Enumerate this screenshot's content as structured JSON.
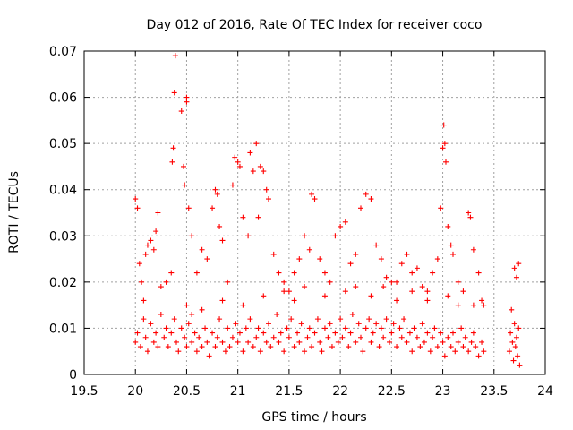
{
  "chart_data": {
    "type": "scatter",
    "title": "Day 012 of 2016, Rate Of TEC Index for receiver coco",
    "xlabel": "GPS time / hours",
    "ylabel": "ROTI / TECUs",
    "xlim": [
      19.5,
      24
    ],
    "ylim": [
      0,
      0.07
    ],
    "xticks": [
      "19.5",
      "20",
      "20.5",
      "21",
      "21.5",
      "22",
      "22.5",
      "23",
      "23.5",
      "24"
    ],
    "yticks": [
      "0",
      "0.01",
      "0.02",
      "0.03",
      "0.04",
      "0.05",
      "0.06",
      "0.07"
    ],
    "grid": true,
    "marker": "+",
    "series": [
      {
        "name": "ROTI",
        "color": "#ff0000",
        "points": [
          [
            20.0,
            0.007
          ],
          [
            20.02,
            0.009
          ],
          [
            20.05,
            0.006
          ],
          [
            20.08,
            0.012
          ],
          [
            20.1,
            0.008
          ],
          [
            20.12,
            0.005
          ],
          [
            20.15,
            0.011
          ],
          [
            20.18,
            0.007
          ],
          [
            20.2,
            0.009
          ],
          [
            20.22,
            0.006
          ],
          [
            20.25,
            0.013
          ],
          [
            20.28,
            0.008
          ],
          [
            20.3,
            0.01
          ],
          [
            20.32,
            0.006
          ],
          [
            20.35,
            0.009
          ],
          [
            20.38,
            0.012
          ],
          [
            20.4,
            0.007
          ],
          [
            20.42,
            0.005
          ],
          [
            20.45,
            0.01
          ],
          [
            20.48,
            0.008
          ],
          [
            20.5,
            0.006
          ],
          [
            20.52,
            0.011
          ],
          [
            20.55,
            0.007
          ],
          [
            20.58,
            0.009
          ],
          [
            20.6,
            0.005
          ],
          [
            20.62,
            0.008
          ],
          [
            20.65,
            0.006
          ],
          [
            20.68,
            0.01
          ],
          [
            20.7,
            0.007
          ],
          [
            20.72,
            0.004
          ],
          [
            20.75,
            0.009
          ],
          [
            20.78,
            0.006
          ],
          [
            20.8,
            0.008
          ],
          [
            20.82,
            0.012
          ],
          [
            20.85,
            0.007
          ],
          [
            20.88,
            0.005
          ],
          [
            20.9,
            0.01
          ],
          [
            20.92,
            0.006
          ],
          [
            20.95,
            0.008
          ],
          [
            20.98,
            0.011
          ],
          [
            21.0,
            0.007
          ],
          [
            21.02,
            0.009
          ],
          [
            21.05,
            0.005
          ],
          [
            21.08,
            0.01
          ],
          [
            21.1,
            0.007
          ],
          [
            21.12,
            0.012
          ],
          [
            21.15,
            0.006
          ],
          [
            21.18,
            0.008
          ],
          [
            21.2,
            0.01
          ],
          [
            21.22,
            0.005
          ],
          [
            21.25,
            0.009
          ],
          [
            21.28,
            0.007
          ],
          [
            21.3,
            0.011
          ],
          [
            21.32,
            0.006
          ],
          [
            21.35,
            0.008
          ],
          [
            21.38,
            0.013
          ],
          [
            21.4,
            0.007
          ],
          [
            21.42,
            0.009
          ],
          [
            21.45,
            0.005
          ],
          [
            21.48,
            0.01
          ],
          [
            21.5,
            0.008
          ],
          [
            21.52,
            0.012
          ],
          [
            21.55,
            0.006
          ],
          [
            21.58,
            0.009
          ],
          [
            21.6,
            0.007
          ],
          [
            21.62,
            0.011
          ],
          [
            21.65,
            0.005
          ],
          [
            21.68,
            0.008
          ],
          [
            21.7,
            0.01
          ],
          [
            21.72,
            0.006
          ],
          [
            21.75,
            0.009
          ],
          [
            21.78,
            0.012
          ],
          [
            21.8,
            0.007
          ],
          [
            21.82,
            0.005
          ],
          [
            21.85,
            0.01
          ],
          [
            21.88,
            0.008
          ],
          [
            21.9,
            0.011
          ],
          [
            21.92,
            0.006
          ],
          [
            21.95,
            0.009
          ],
          [
            21.98,
            0.007
          ],
          [
            22.0,
            0.012
          ],
          [
            22.02,
            0.008
          ],
          [
            22.05,
            0.01
          ],
          [
            22.08,
            0.006
          ],
          [
            22.1,
            0.009
          ],
          [
            22.12,
            0.013
          ],
          [
            22.15,
            0.007
          ],
          [
            22.18,
            0.011
          ],
          [
            22.2,
            0.008
          ],
          [
            22.22,
            0.005
          ],
          [
            22.25,
            0.01
          ],
          [
            22.28,
            0.012
          ],
          [
            22.3,
            0.007
          ],
          [
            22.32,
            0.009
          ],
          [
            22.35,
            0.011
          ],
          [
            22.38,
            0.006
          ],
          [
            22.4,
            0.01
          ],
          [
            22.42,
            0.008
          ],
          [
            22.45,
            0.012
          ],
          [
            22.48,
            0.007
          ],
          [
            22.5,
            0.009
          ],
          [
            22.52,
            0.011
          ],
          [
            22.55,
            0.006
          ],
          [
            22.58,
            0.01
          ],
          [
            22.6,
            0.008
          ],
          [
            22.62,
            0.012
          ],
          [
            22.65,
            0.007
          ],
          [
            22.68,
            0.009
          ],
          [
            22.7,
            0.005
          ],
          [
            22.72,
            0.01
          ],
          [
            22.75,
            0.008
          ],
          [
            22.78,
            0.006
          ],
          [
            22.8,
            0.011
          ],
          [
            22.82,
            0.007
          ],
          [
            22.85,
            0.009
          ],
          [
            22.88,
            0.005
          ],
          [
            22.9,
            0.008
          ],
          [
            22.92,
            0.01
          ],
          [
            22.95,
            0.006
          ],
          [
            22.98,
            0.009
          ],
          [
            23.0,
            0.007
          ],
          [
            23.02,
            0.004
          ],
          [
            23.05,
            0.008
          ],
          [
            23.08,
            0.006
          ],
          [
            23.1,
            0.009
          ],
          [
            23.12,
            0.005
          ],
          [
            23.15,
            0.007
          ],
          [
            23.18,
            0.01
          ],
          [
            23.2,
            0.006
          ],
          [
            23.22,
            0.008
          ],
          [
            23.25,
            0.005
          ],
          [
            23.28,
            0.007
          ],
          [
            23.3,
            0.009
          ],
          [
            23.32,
            0.006
          ],
          [
            23.35,
            0.004
          ],
          [
            23.38,
            0.007
          ],
          [
            23.4,
            0.005
          ],
          [
            20.0,
            0.038
          ],
          [
            20.02,
            0.036
          ],
          [
            20.04,
            0.024
          ],
          [
            20.06,
            0.02
          ],
          [
            20.08,
            0.016
          ],
          [
            20.1,
            0.026
          ],
          [
            20.12,
            0.028
          ],
          [
            20.15,
            0.029
          ],
          [
            20.18,
            0.027
          ],
          [
            20.2,
            0.031
          ],
          [
            20.22,
            0.035
          ],
          [
            20.25,
            0.019
          ],
          [
            20.3,
            0.02
          ],
          [
            20.35,
            0.022
          ],
          [
            20.36,
            0.046
          ],
          [
            20.37,
            0.049
          ],
          [
            20.38,
            0.061
          ],
          [
            20.39,
            0.069
          ],
          [
            20.45,
            0.057
          ],
          [
            20.47,
            0.045
          ],
          [
            20.48,
            0.041
          ],
          [
            20.5,
            0.06
          ],
          [
            20.5,
            0.059
          ],
          [
            20.52,
            0.036
          ],
          [
            20.55,
            0.03
          ],
          [
            20.6,
            0.022
          ],
          [
            20.65,
            0.027
          ],
          [
            20.7,
            0.025
          ],
          [
            20.75,
            0.036
          ],
          [
            20.78,
            0.04
          ],
          [
            20.8,
            0.039
          ],
          [
            20.82,
            0.032
          ],
          [
            20.85,
            0.029
          ],
          [
            20.9,
            0.02
          ],
          [
            20.95,
            0.041
          ],
          [
            20.97,
            0.047
          ],
          [
            21.0,
            0.046
          ],
          [
            21.02,
            0.045
          ],
          [
            21.05,
            0.034
          ],
          [
            21.1,
            0.03
          ],
          [
            21.12,
            0.048
          ],
          [
            21.15,
            0.044
          ],
          [
            21.18,
            0.05
          ],
          [
            21.2,
            0.034
          ],
          [
            21.22,
            0.045
          ],
          [
            21.25,
            0.044
          ],
          [
            21.28,
            0.04
          ],
          [
            21.3,
            0.038
          ],
          [
            21.35,
            0.026
          ],
          [
            21.4,
            0.022
          ],
          [
            21.45,
            0.02
          ],
          [
            21.5,
            0.018
          ],
          [
            21.55,
            0.022
          ],
          [
            21.6,
            0.025
          ],
          [
            21.65,
            0.03
          ],
          [
            21.7,
            0.027
          ],
          [
            21.72,
            0.039
          ],
          [
            21.75,
            0.038
          ],
          [
            21.8,
            0.025
          ],
          [
            21.85,
            0.022
          ],
          [
            21.9,
            0.02
          ],
          [
            21.95,
            0.03
          ],
          [
            22.0,
            0.032
          ],
          [
            22.05,
            0.033
          ],
          [
            22.1,
            0.024
          ],
          [
            22.15,
            0.026
          ],
          [
            22.2,
            0.036
          ],
          [
            22.25,
            0.039
          ],
          [
            22.3,
            0.038
          ],
          [
            22.35,
            0.028
          ],
          [
            22.4,
            0.025
          ],
          [
            22.45,
            0.021
          ],
          [
            22.5,
            0.02
          ],
          [
            22.55,
            0.02
          ],
          [
            22.6,
            0.024
          ],
          [
            22.65,
            0.026
          ],
          [
            22.7,
            0.022
          ],
          [
            22.75,
            0.023
          ],
          [
            22.8,
            0.019
          ],
          [
            22.85,
            0.018
          ],
          [
            22.9,
            0.022
          ],
          [
            22.95,
            0.025
          ],
          [
            22.98,
            0.036
          ],
          [
            23.0,
            0.049
          ],
          [
            23.01,
            0.054
          ],
          [
            23.02,
            0.05
          ],
          [
            23.03,
            0.046
          ],
          [
            23.05,
            0.032
          ],
          [
            23.08,
            0.028
          ],
          [
            23.1,
            0.026
          ],
          [
            23.15,
            0.02
          ],
          [
            23.2,
            0.018
          ],
          [
            23.25,
            0.035
          ],
          [
            23.27,
            0.034
          ],
          [
            23.3,
            0.027
          ],
          [
            23.35,
            0.022
          ],
          [
            23.38,
            0.016
          ],
          [
            23.4,
            0.015
          ],
          [
            20.5,
            0.015
          ],
          [
            20.55,
            0.013
          ],
          [
            20.65,
            0.014
          ],
          [
            20.85,
            0.016
          ],
          [
            21.05,
            0.015
          ],
          [
            21.25,
            0.017
          ],
          [
            21.45,
            0.018
          ],
          [
            21.55,
            0.016
          ],
          [
            21.65,
            0.019
          ],
          [
            21.85,
            0.017
          ],
          [
            22.05,
            0.018
          ],
          [
            22.15,
            0.019
          ],
          [
            22.3,
            0.017
          ],
          [
            22.42,
            0.019
          ],
          [
            22.55,
            0.016
          ],
          [
            22.7,
            0.018
          ],
          [
            22.85,
            0.016
          ],
          [
            23.05,
            0.017
          ],
          [
            23.15,
            0.015
          ],
          [
            23.3,
            0.015
          ],
          [
            23.65,
            0.005
          ],
          [
            23.66,
            0.009
          ],
          [
            23.67,
            0.014
          ],
          [
            23.68,
            0.007
          ],
          [
            23.69,
            0.003
          ],
          [
            23.7,
            0.011
          ],
          [
            23.71,
            0.006
          ],
          [
            23.72,
            0.008
          ],
          [
            23.73,
            0.004
          ],
          [
            23.74,
            0.01
          ],
          [
            23.7,
            0.023
          ],
          [
            23.72,
            0.021
          ],
          [
            23.74,
            0.024
          ],
          [
            23.75,
            0.002
          ]
        ]
      }
    ]
  }
}
